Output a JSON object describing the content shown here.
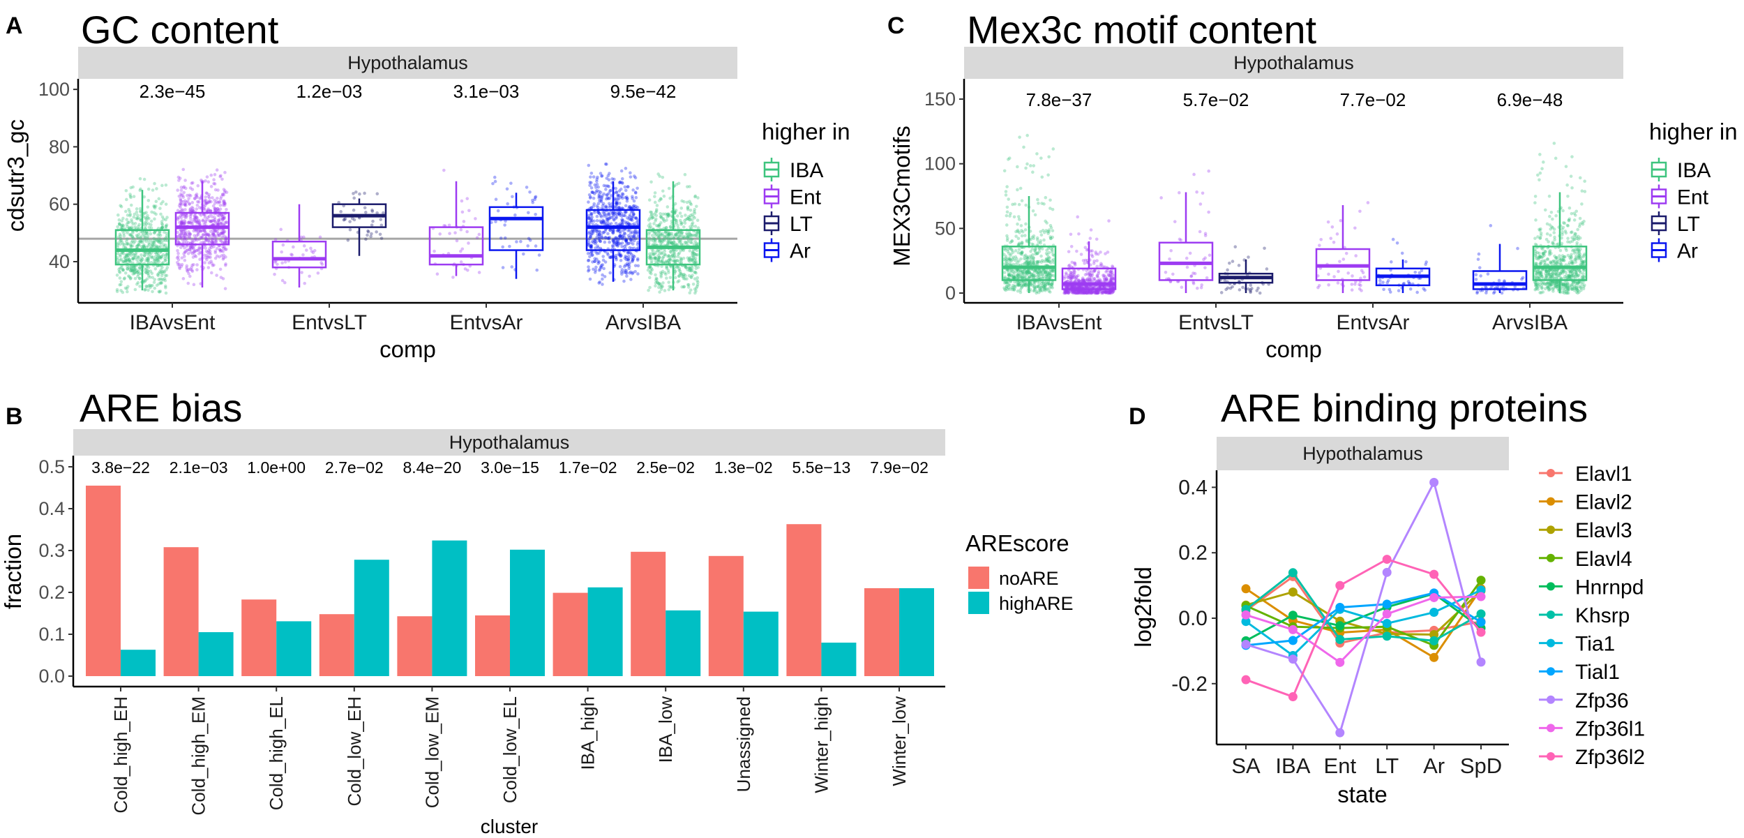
{
  "chart_data": [
    {
      "panel": "A",
      "type": "box",
      "title": "GC content",
      "facet": "Hypothalamus",
      "xlabel": "comp",
      "ylabel": "cdsutr3_gc",
      "ylim": [
        28,
        103
      ],
      "yticks": [
        40,
        60,
        80,
        100
      ],
      "reference_line": 48,
      "legend_title": "higher in",
      "legend": [
        {
          "name": "IBA",
          "color": "#3DC47E"
        },
        {
          "name": "Ent",
          "color": "#9D3BF2"
        },
        {
          "name": "LT",
          "color": "#1B1B6B"
        },
        {
          "name": "Ar",
          "color": "#0A16F0"
        }
      ],
      "categories": [
        "IBAvsEnt",
        "EntvsLT",
        "EntvsAr",
        "ArvsIBA"
      ],
      "pvalues": [
        "2.3e−45",
        "1.2e−03",
        "3.1e−03",
        "9.5e−42"
      ],
      "boxes": [
        [
          {
            "group": "IBA",
            "median": 44,
            "q1": 39,
            "q3": 51,
            "lo": 30,
            "hi": 65
          },
          {
            "group": "Ent",
            "median": 52,
            "q1": 46,
            "q3": 57,
            "lo": 31,
            "hi": 68
          }
        ],
        [
          {
            "group": "Ent",
            "median": 41,
            "q1": 38,
            "q3": 47,
            "lo": 31,
            "hi": 60
          },
          {
            "group": "LT",
            "median": 56,
            "q1": 52,
            "q3": 60,
            "lo": 42,
            "hi": 62
          }
        ],
        [
          {
            "group": "Ent",
            "median": 42,
            "q1": 39,
            "q3": 52,
            "lo": 35,
            "hi": 68
          },
          {
            "group": "Ar",
            "median": 55,
            "q1": 44,
            "q3": 59,
            "lo": 34,
            "hi": 64
          }
        ],
        [
          {
            "group": "Ar",
            "median": 52,
            "q1": 44,
            "q3": 58,
            "lo": 33,
            "hi": 68
          },
          {
            "group": "IBA",
            "median": 45,
            "q1": 39,
            "q3": 51,
            "lo": 30,
            "hi": 68
          }
        ]
      ]
    },
    {
      "panel": "C",
      "type": "box",
      "title": "Mex3c motif content",
      "facet": "Hypothalamus",
      "xlabel": "comp",
      "ylabel": "MEX3Cmotifs",
      "ylim": [
        -5,
        160
      ],
      "yticks": [
        0,
        50,
        100,
        150
      ],
      "legend_title": "higher in",
      "legend": [
        {
          "name": "IBA",
          "color": "#3DC47E"
        },
        {
          "name": "Ent",
          "color": "#9D3BF2"
        },
        {
          "name": "LT",
          "color": "#1B1B6B"
        },
        {
          "name": "Ar",
          "color": "#0A16F0"
        }
      ],
      "categories": [
        "IBAvsEnt",
        "EntvsLT",
        "EntvsAr",
        "ArvsIBA"
      ],
      "pvalues": [
        "7.8e−37",
        "5.7e−02",
        "7.7e−02",
        "6.9e−48"
      ],
      "boxes": [
        [
          {
            "group": "IBA",
            "median": 20,
            "q1": 10,
            "q3": 36,
            "lo": 0,
            "hi": 75
          },
          {
            "group": "Ent",
            "median": 7,
            "q1": 3,
            "q3": 19,
            "lo": 0,
            "hi": 40
          }
        ],
        [
          {
            "group": "Ent",
            "median": 23,
            "q1": 10,
            "q3": 39,
            "lo": 0,
            "hi": 78
          },
          {
            "group": "LT",
            "median": 12,
            "q1": 8,
            "q3": 15,
            "lo": 0,
            "hi": 26
          }
        ],
        [
          {
            "group": "Ent",
            "median": 21,
            "q1": 10,
            "q3": 34,
            "lo": 0,
            "hi": 68
          },
          {
            "group": "Ar",
            "median": 13,
            "q1": 6,
            "q3": 19,
            "lo": 0,
            "hi": 26
          }
        ],
        [
          {
            "group": "Ar",
            "median": 7,
            "q1": 3,
            "q3": 17,
            "lo": 0,
            "hi": 38
          },
          {
            "group": "IBA",
            "median": 20,
            "q1": 10,
            "q3": 36,
            "lo": 0,
            "hi": 78
          }
        ]
      ]
    },
    {
      "panel": "B",
      "type": "bar",
      "title": "ARE bias",
      "facet": "Hypothalamus",
      "xlabel": "cluster",
      "ylabel": "fraction",
      "ylim": [
        -0.02,
        0.52
      ],
      "yticks": [
        0.0,
        0.1,
        0.2,
        0.3,
        0.4,
        0.5
      ],
      "ytick_labels": [
        "0.0",
        "0.1",
        "0.2",
        "0.3",
        "0.4",
        "0.5"
      ],
      "legend_title": "AREscore",
      "categories": [
        "Cold_high_EH",
        "Cold_high_EM",
        "Cold_high_EL",
        "Cold_low_EH",
        "Cold_low_EM",
        "Cold_low_EL",
        "IBA_high",
        "IBA_low",
        "Unassigned",
        "Winter_high",
        "Winter_low"
      ],
      "pvalues": [
        "3.8e−22",
        "2.1e−03",
        "1.0e+00",
        "2.7e−02",
        "8.4e−20",
        "3.0e−15",
        "1.7e−02",
        "2.5e−02",
        "1.3e−02",
        "5.5e−13",
        "7.9e−02"
      ],
      "series": [
        {
          "name": "noARE",
          "color": "#F8766D",
          "values": [
            0.455,
            0.308,
            0.183,
            0.148,
            0.143,
            0.145,
            0.199,
            0.297,
            0.287,
            0.363,
            0.21
          ]
        },
        {
          "name": "highARE",
          "color": "#00BFC4",
          "values": [
            0.063,
            0.105,
            0.131,
            0.278,
            0.324,
            0.302,
            0.212,
            0.157,
            0.154,
            0.08,
            0.21
          ]
        }
      ]
    },
    {
      "panel": "D",
      "type": "line",
      "title": "ARE binding proteins",
      "facet": "Hypothalamus",
      "xlabel": "state",
      "ylabel": "log2fold",
      "x": [
        "SA",
        "IBA",
        "Ent",
        "LT",
        "Ar",
        "SpD"
      ],
      "ylim": [
        -0.39,
        0.46
      ],
      "yticks": [
        -0.2,
        0.0,
        0.2,
        0.4
      ],
      "ytick_labels": [
        "-0.2",
        "0.0",
        "0.2",
        "0.4"
      ],
      "series": [
        {
          "name": "Elavl1",
          "color": "#F8766D",
          "values": [
            0.023,
            0.127,
            -0.076,
            -0.044,
            -0.037,
            -0.01
          ]
        },
        {
          "name": "Elavl2",
          "color": "#DB8E00",
          "values": [
            0.09,
            -0.007,
            -0.044,
            -0.035,
            -0.12,
            0.09
          ]
        },
        {
          "name": "Elavl3",
          "color": "#AEA200",
          "values": [
            0.04,
            0.08,
            -0.009,
            -0.048,
            -0.05,
            0.084
          ]
        },
        {
          "name": "Elavl4",
          "color": "#64B200",
          "values": [
            0.038,
            -0.026,
            -0.03,
            -0.026,
            -0.083,
            0.116
          ]
        },
        {
          "name": "Hnrnpd",
          "color": "#00BD5C",
          "values": [
            -0.069,
            0.009,
            -0.023,
            0.034,
            0.075,
            -0.03
          ]
        },
        {
          "name": "Khsrp",
          "color": "#00C1A7",
          "values": [
            0.027,
            0.139,
            -0.065,
            -0.055,
            -0.069,
            0.013
          ]
        },
        {
          "name": "Tia1",
          "color": "#00BADE",
          "values": [
            -0.01,
            -0.114,
            0.027,
            -0.016,
            0.018,
            0.086
          ]
        },
        {
          "name": "Tial1",
          "color": "#00A6FF",
          "values": [
            -0.083,
            -0.068,
            0.033,
            0.043,
            0.077,
            -0.012
          ]
        },
        {
          "name": "Zfp36",
          "color": "#B385FF",
          "values": [
            -0.08,
            -0.125,
            -0.35,
            0.14,
            0.415,
            -0.134
          ]
        },
        {
          "name": "Zfp36l1",
          "color": "#EF67EB",
          "values": [
            0.01,
            -0.035,
            -0.135,
            0.013,
            0.063,
            0.066
          ]
        },
        {
          "name": "Zfp36l2",
          "color": "#FF63B6",
          "values": [
            -0.188,
            -0.24,
            0.1,
            0.18,
            0.134,
            -0.043
          ]
        }
      ]
    }
  ]
}
